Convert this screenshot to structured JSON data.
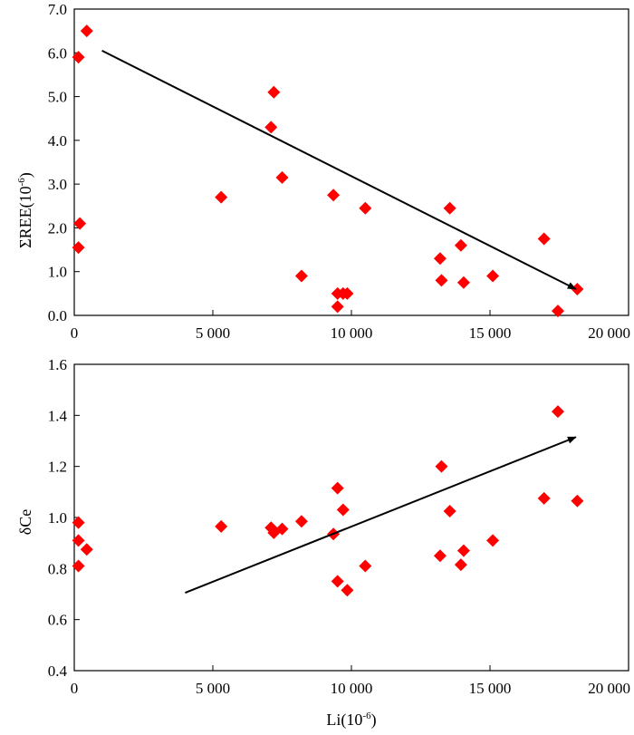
{
  "chart_data": [
    {
      "type": "scatter",
      "title": "",
      "xlabel": "",
      "ylabel": "ΣREE(10⁻⁶)",
      "ylabel_base": "ΣREE(10",
      "ylabel_exp": "-6",
      "ylabel_close": ")",
      "xlim": [
        0,
        20000
      ],
      "ylim": [
        0,
        7
      ],
      "x_ticks": [
        0,
        5000,
        10000,
        15000,
        20000
      ],
      "x_tick_labels": [
        "0",
        "5 000",
        "10 000",
        "15 000",
        "20 000"
      ],
      "y_ticks": [
        0,
        1,
        2,
        3,
        4,
        5,
        6,
        7
      ],
      "y_tick_labels": [
        "0.0",
        "1.0",
        "2.0",
        "3.0",
        "4.0",
        "5.0",
        "6.0",
        "7.0"
      ],
      "marker_color": "#ff0000",
      "points": [
        {
          "x": 150,
          "y": 5.9
        },
        {
          "x": 450,
          "y": 6.5
        },
        {
          "x": 200,
          "y": 2.1
        },
        {
          "x": 150,
          "y": 1.55
        },
        {
          "x": 5300,
          "y": 2.7
        },
        {
          "x": 7100,
          "y": 4.3
        },
        {
          "x": 7200,
          "y": 5.1
        },
        {
          "x": 7500,
          "y": 3.15
        },
        {
          "x": 8200,
          "y": 0.9
        },
        {
          "x": 9350,
          "y": 2.75
        },
        {
          "x": 9500,
          "y": 0.5
        },
        {
          "x": 9500,
          "y": 0.2
        },
        {
          "x": 9700,
          "y": 0.5
        },
        {
          "x": 9850,
          "y": 0.5
        },
        {
          "x": 10500,
          "y": 2.45
        },
        {
          "x": 13200,
          "y": 1.3
        },
        {
          "x": 13250,
          "y": 0.8
        },
        {
          "x": 13550,
          "y": 2.45
        },
        {
          "x": 13950,
          "y": 1.6
        },
        {
          "x": 14050,
          "y": 0.75
        },
        {
          "x": 15100,
          "y": 0.9
        },
        {
          "x": 16950,
          "y": 1.75
        },
        {
          "x": 17450,
          "y": 0.1
        },
        {
          "x": 18150,
          "y": 0.6
        }
      ],
      "trend_arrow": {
        "from": [
          1000,
          6.05
        ],
        "to": [
          18100,
          0.6
        ]
      }
    },
    {
      "type": "scatter",
      "title": "",
      "xlabel": "Li(10⁻⁶)",
      "xlabel_base": "Li(10",
      "xlabel_exp": "-6",
      "xlabel_close": ")",
      "ylabel": "δCe",
      "xlim": [
        0,
        20000
      ],
      "ylim": [
        0.4,
        1.6
      ],
      "x_ticks": [
        0,
        5000,
        10000,
        15000,
        20000
      ],
      "x_tick_labels": [
        "0",
        "5 000",
        "10 000",
        "15 000",
        "20 000"
      ],
      "y_ticks": [
        0.4,
        0.6,
        0.8,
        1.0,
        1.2,
        1.4,
        1.6
      ],
      "y_tick_labels": [
        "0.4",
        "0.6",
        "0.8",
        "1.0",
        "1.2",
        "1.4",
        "1.6"
      ],
      "marker_color": "#ff0000",
      "points": [
        {
          "x": 150,
          "y": 0.98
        },
        {
          "x": 150,
          "y": 0.91
        },
        {
          "x": 150,
          "y": 0.81
        },
        {
          "x": 450,
          "y": 0.875
        },
        {
          "x": 5300,
          "y": 0.965
        },
        {
          "x": 7100,
          "y": 0.96
        },
        {
          "x": 7200,
          "y": 0.94
        },
        {
          "x": 7500,
          "y": 0.955
        },
        {
          "x": 8200,
          "y": 0.985
        },
        {
          "x": 9350,
          "y": 0.935
        },
        {
          "x": 9500,
          "y": 1.115
        },
        {
          "x": 9500,
          "y": 0.75
        },
        {
          "x": 9700,
          "y": 1.03
        },
        {
          "x": 9850,
          "y": 0.715
        },
        {
          "x": 10500,
          "y": 0.81
        },
        {
          "x": 13200,
          "y": 0.85
        },
        {
          "x": 13250,
          "y": 1.2
        },
        {
          "x": 13550,
          "y": 1.025
        },
        {
          "x": 13950,
          "y": 0.815
        },
        {
          "x": 14050,
          "y": 0.87
        },
        {
          "x": 15100,
          "y": 0.91
        },
        {
          "x": 16950,
          "y": 1.075
        },
        {
          "x": 17450,
          "y": 1.415
        },
        {
          "x": 18150,
          "y": 1.065
        }
      ],
      "trend_arrow": {
        "from": [
          4000,
          0.705
        ],
        "to": [
          18100,
          1.315
        ]
      }
    }
  ]
}
